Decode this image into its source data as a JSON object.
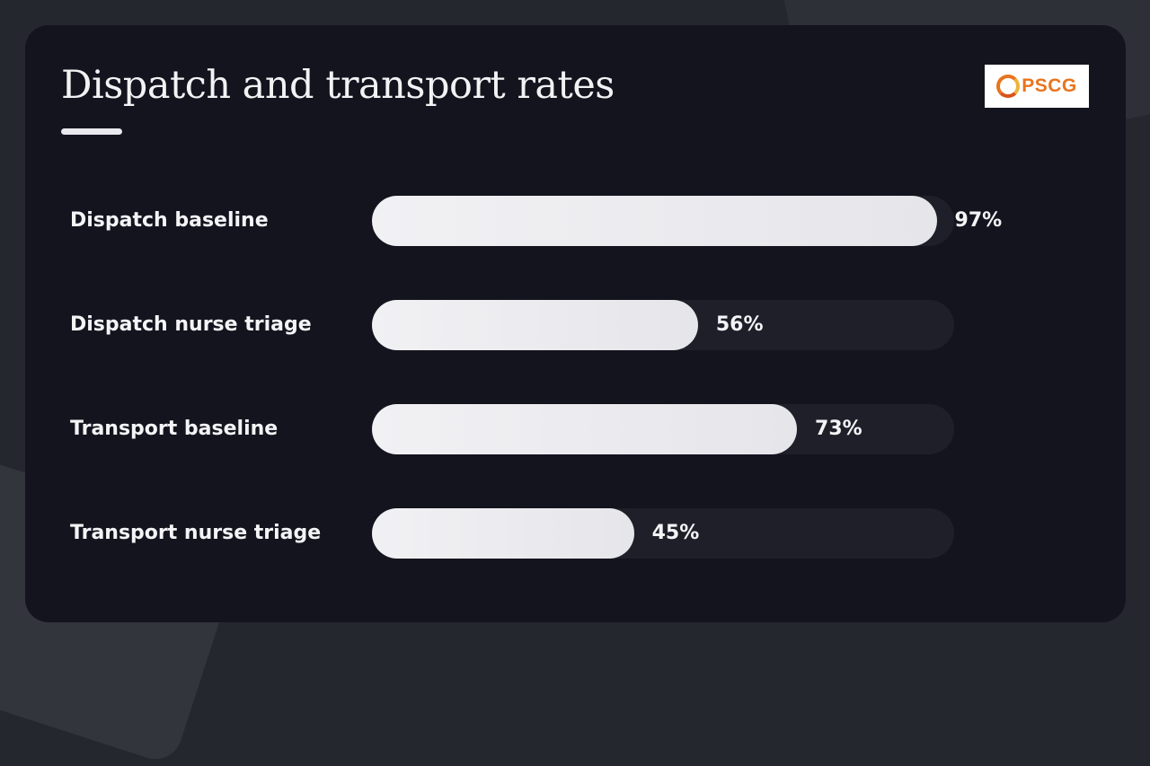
{
  "slide": {
    "title": "Dispatch and transport rates",
    "logo_text": "PSCG"
  },
  "chart_data": {
    "type": "bar",
    "orientation": "horizontal",
    "title": "Dispatch and transport rates",
    "categories": [
      "Dispatch baseline",
      "Dispatch nurse triage",
      "Transport baseline",
      "Transport nurse triage"
    ],
    "values": [
      97,
      56,
      73,
      45
    ],
    "value_labels": [
      "97%",
      "56%",
      "73%",
      "45%"
    ],
    "unit": "%",
    "xlim": [
      0,
      100
    ],
    "grid": false,
    "legend": "none",
    "colors": {
      "bar": "#eeeef1",
      "track": "#1f1f2a",
      "card": "#14141f",
      "text": "#f4f4f6"
    }
  },
  "logo": {
    "icon": "pscg-logo-icon",
    "ring_colors": [
      "#e8741e",
      "#f0b23a",
      "#d9531a"
    ]
  }
}
